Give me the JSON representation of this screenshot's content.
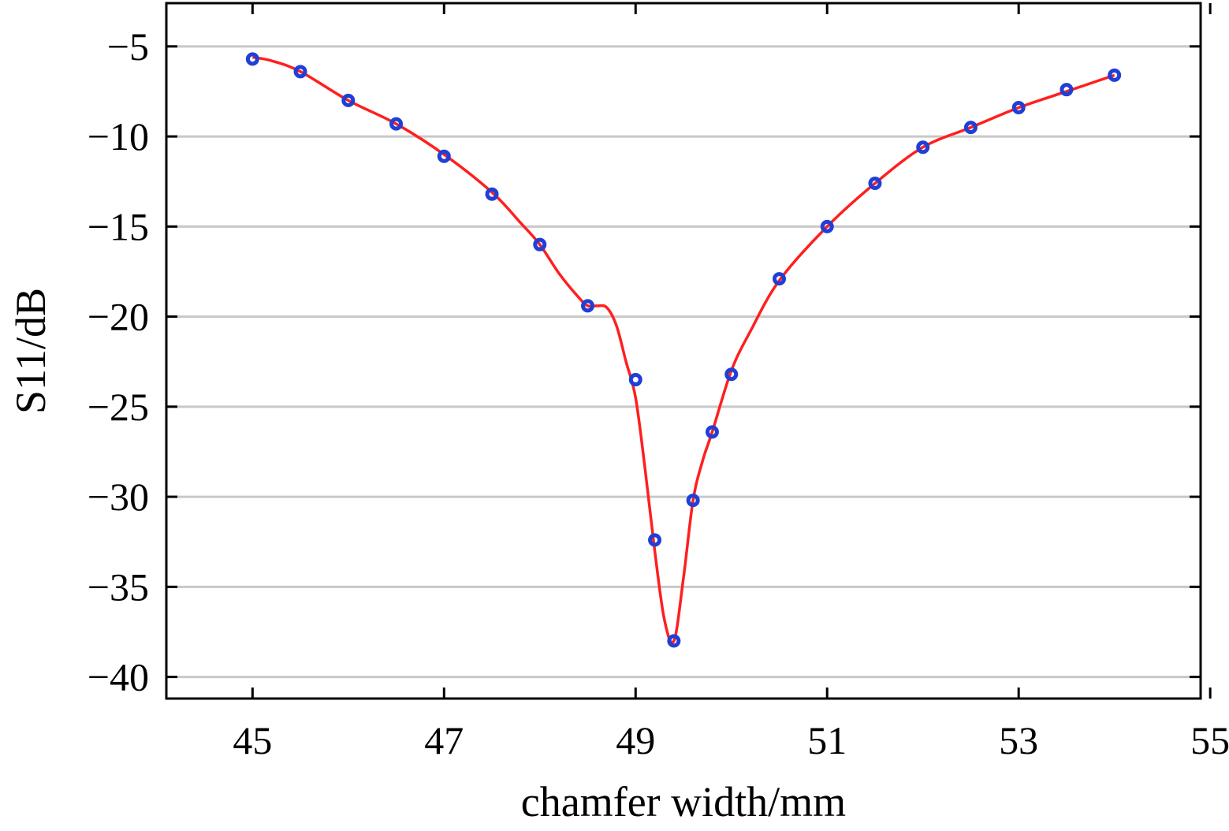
{
  "chart_data": {
    "type": "line",
    "title": "",
    "xlabel": "chamfer width/mm",
    "ylabel": "S11/dB",
    "xlim": [
      44.1,
      54.9
    ],
    "ylim": [
      -41.2,
      -2.6
    ],
    "xticks": [
      45,
      47,
      49,
      51,
      53,
      55
    ],
    "xtick_labels": [
      "45",
      "47",
      "49",
      "51",
      "53",
      "55"
    ],
    "yticks": [
      -5,
      -10,
      -15,
      -20,
      -25,
      -30,
      -35,
      -40
    ],
    "ytick_labels": [
      "−5",
      "−10",
      "−15",
      "−20",
      "−25",
      "−30",
      "−35",
      "−40"
    ],
    "grid": "horizontal",
    "legend": "none",
    "series": [
      {
        "style": "markers",
        "color": "#1f3fd6",
        "x": [
          45,
          45.5,
          46,
          46.5,
          47,
          47.5,
          48,
          48.5,
          49,
          49.2,
          49.4,
          49.6,
          49.8,
          50,
          50.5,
          51,
          51.5,
          52,
          52.5,
          53,
          53.5,
          54
        ],
        "y": [
          -5.7,
          -6.4,
          -8.0,
          -9.3,
          -11.1,
          -13.2,
          -16.0,
          -19.4,
          -23.5,
          -32.4,
          -38.0,
          -30.2,
          -26.4,
          -23.2,
          -17.9,
          -15.0,
          -12.6,
          -10.6,
          -9.5,
          -8.4,
          -7.4,
          -6.6
        ]
      },
      {
        "style": "line",
        "color": "#ff1f1f",
        "x": [
          45,
          45.2,
          45.5,
          46,
          46.5,
          47,
          47.5,
          47.8,
          48,
          48.2,
          48.4,
          48.5,
          48.6,
          48.7,
          48.8,
          48.9,
          49,
          49.1,
          49.2,
          49.3,
          49.4,
          49.5,
          49.6,
          49.7,
          49.8,
          50,
          50.2,
          50.5,
          51,
          51.5,
          52,
          52.5,
          53,
          53.5,
          54
        ],
        "y": [
          -5.6,
          -5.8,
          -6.4,
          -8.0,
          -9.3,
          -11.0,
          -13.1,
          -14.8,
          -16.0,
          -17.6,
          -18.9,
          -19.4,
          -19.4,
          -19.5,
          -20.5,
          -22.5,
          -24.5,
          -28.5,
          -33.0,
          -36.8,
          -38.0,
          -34.5,
          -30.2,
          -28.0,
          -26.4,
          -23.0,
          -20.8,
          -18.0,
          -15.0,
          -12.6,
          -10.6,
          -9.5,
          -8.4,
          -7.5,
          -6.6
        ]
      }
    ]
  }
}
